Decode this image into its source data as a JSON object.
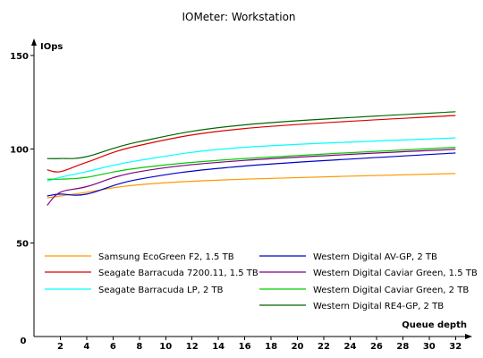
{
  "chart_data": {
    "type": "line",
    "title": "IOMeter: Workstation",
    "xlabel": "Queue depth",
    "ylabel": "IOps",
    "x": [
      1,
      2,
      4,
      8,
      16,
      32
    ],
    "xticks": [
      2,
      4,
      6,
      8,
      10,
      12,
      14,
      16,
      18,
      20,
      22,
      24,
      26,
      28,
      30,
      32
    ],
    "xlim": [
      0,
      33
    ],
    "yticks": [
      50,
      100,
      150
    ],
    "ylim": [
      0,
      150
    ],
    "origin_label": "0",
    "grid": false,
    "legend_position": "bottom-inside",
    "series": [
      {
        "name": "Samsung EcoGreen F2, 1.5 TB",
        "color": "#ff9900",
        "values": [
          74,
          75,
          77,
          81,
          84,
          87
        ]
      },
      {
        "name": "Seagate Barracuda 7200.11, 1.5 TB",
        "color": "#dd0000",
        "values": [
          89,
          88,
          93,
          102,
          111,
          118
        ]
      },
      {
        "name": "Seagate Barracuda LP, 2 TB",
        "color": "#00ffff",
        "values": [
          83,
          85,
          88,
          94,
          101,
          106
        ]
      },
      {
        "name": "Western Digital AV-GP, 2 TB",
        "color": "#0000cc",
        "values": [
          75,
          76,
          76,
          84,
          91,
          98
        ]
      },
      {
        "name": "Western Digital Caviar Green, 1.5 TB",
        "color": "#800080",
        "values": [
          70,
          77,
          80,
          88,
          94,
          100
        ]
      },
      {
        "name": "Western Digital Caviar Green, 2 TB",
        "color": "#00cc00",
        "values": [
          84,
          84,
          85,
          90,
          95,
          101
        ]
      },
      {
        "name": "Western Digital RE4-GP, 2 TB",
        "color": "#006600",
        "values": [
          95,
          95,
          96,
          104,
          113,
          120
        ]
      }
    ]
  }
}
